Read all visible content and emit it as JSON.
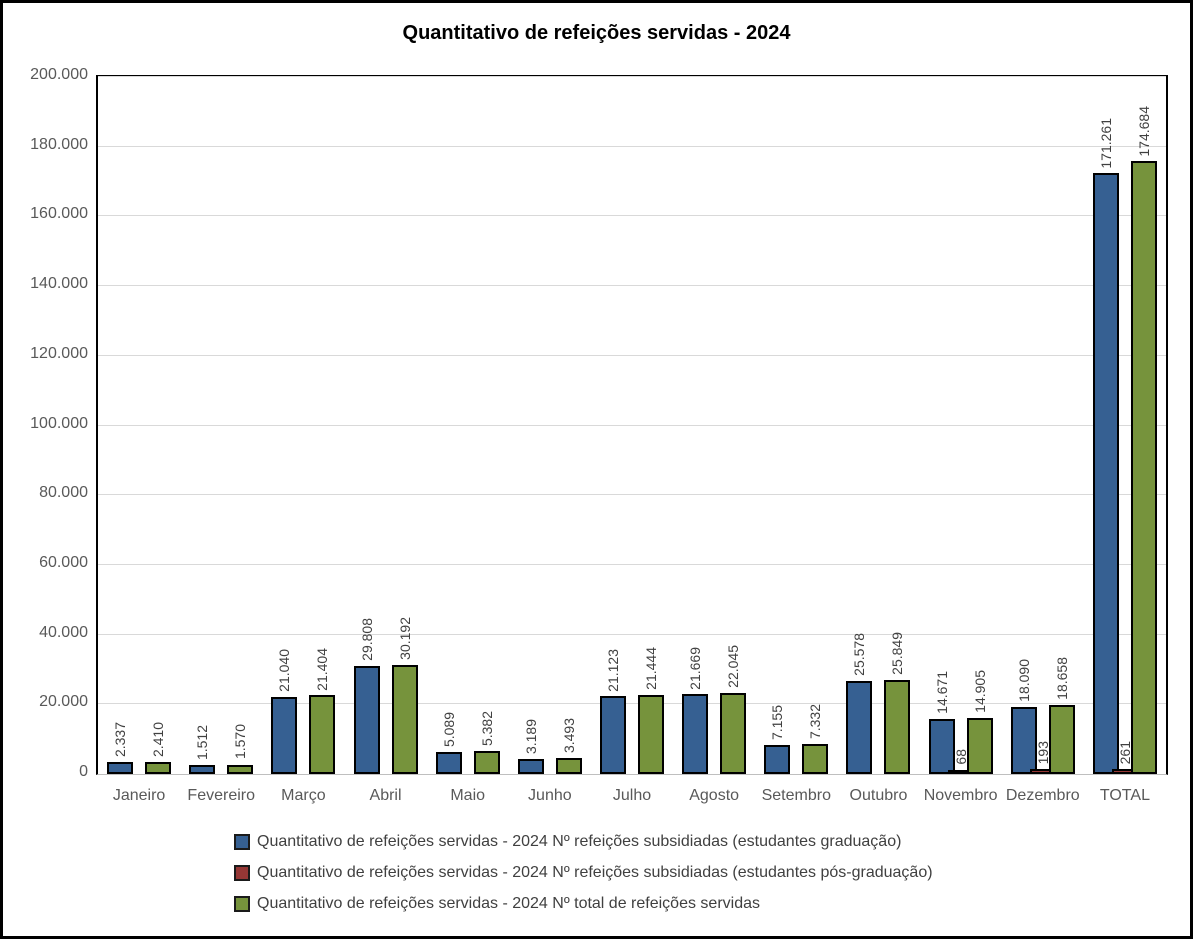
{
  "window": {
    "background": "#ffffff",
    "outer_border_color": "#000000"
  },
  "colors": {
    "gridline": "#d9d9d9",
    "axis_line": "#bfbfbf",
    "plot_border": "#000000",
    "tick_text": "#595959",
    "data_label_text": "#404040",
    "title_text": "#000000"
  },
  "chart_data": {
    "type": "bar",
    "title": "Quantitativo de refeições servidas - 2024",
    "categories": [
      "Janeiro",
      "Fevereiro",
      "Março",
      "Abril",
      "Maio",
      "Junho",
      "Julho",
      "Agosto",
      "Setembro",
      "Outubro",
      "Novembro",
      "Dezembro",
      "TOTAL"
    ],
    "series": [
      {
        "name": "Quantitativo de refeições servidas - 2024 Nº refeições subsidiadas (estudantes graduação)",
        "color": "#366092",
        "values": [
          2337,
          1512,
          21040,
          29808,
          5089,
          3189,
          21123,
          21669,
          7155,
          25578,
          14671,
          18090,
          171261
        ]
      },
      {
        "name": "Quantitativo de refeições servidas - 2024 Nº refeições subsidiadas (estudantes pós-graduação)",
        "color": "#953735",
        "values": [
          null,
          null,
          null,
          null,
          null,
          null,
          null,
          null,
          null,
          null,
          68,
          193,
          261
        ]
      },
      {
        "name": "Quantitativo de refeições servidas - 2024 Nº total de refeições servidas",
        "color": "#76933C",
        "values": [
          2410,
          1570,
          21404,
          30192,
          5382,
          3493,
          21444,
          22045,
          7332,
          25849,
          14905,
          18658,
          174684
        ]
      }
    ],
    "ylim": [
      0,
      200000
    ],
    "ytick_step": 20000,
    "ytick_labels": [
      "0",
      "20.000",
      "40.000",
      "60.000",
      "80.000",
      "100.000",
      "120.000",
      "140.000",
      "160.000",
      "180.000",
      "200.000"
    ],
    "grid": true,
    "legend_position": "bottom",
    "data_labels": {
      "rotation": -90,
      "thousands_separator": "."
    }
  }
}
